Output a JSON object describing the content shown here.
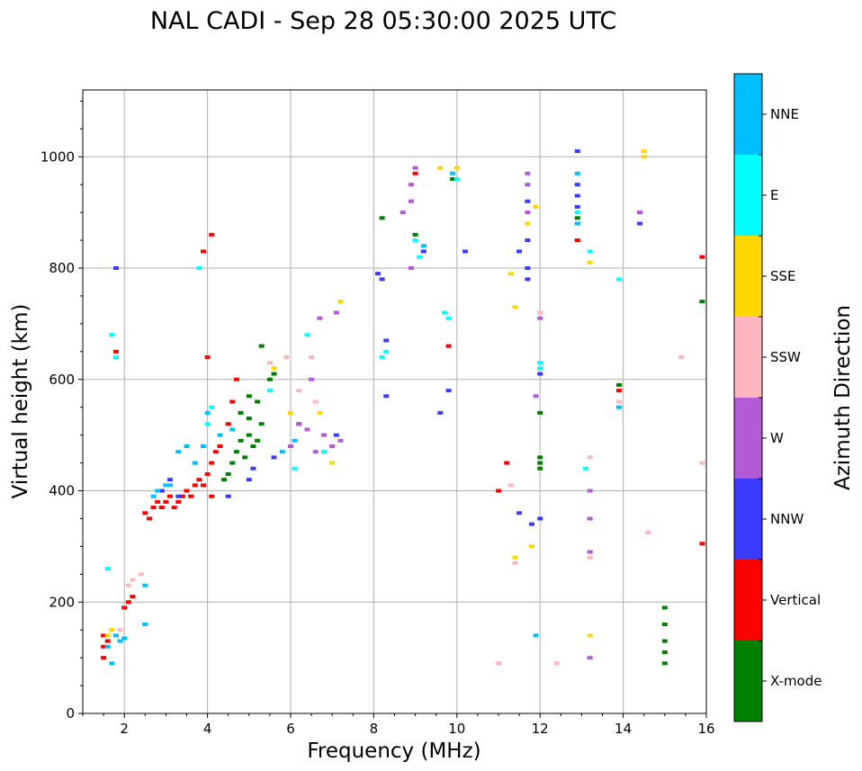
{
  "chart_data": {
    "type": "scatter",
    "title": "NAL CADI - Sep 28 05:30:00 2025 UTC",
    "xlabel": "Frequency (MHz)",
    "ylabel": "Virtual height (km)",
    "xlim": [
      1,
      16
    ],
    "ylim": [
      0,
      1120
    ],
    "x_ticks": [
      2,
      4,
      6,
      8,
      10,
      12,
      14,
      16
    ],
    "x_tick_labels": [
      "2",
      "4",
      "6",
      "8",
      "10",
      "12",
      "14",
      "16"
    ],
    "y_ticks": [
      0,
      200,
      400,
      600,
      800,
      1000
    ],
    "y_tick_labels": [
      "0",
      "200",
      "400",
      "600",
      "800",
      "1000"
    ],
    "grid": true,
    "colorbar": {
      "label": "Azimuth Direction",
      "categories": [
        {
          "name": "X-mode",
          "color": "#008000"
        },
        {
          "name": "Vertical",
          "color": "#ff0000"
        },
        {
          "name": "NNW",
          "color": "#3a3aff"
        },
        {
          "name": "W",
          "color": "#b35ad6"
        },
        {
          "name": "SSW",
          "color": "#ffb6c1"
        },
        {
          "name": "SSE",
          "color": "#ffd700"
        },
        {
          "name": "E",
          "color": "#00ffff"
        },
        {
          "name": "NNE",
          "color": "#00bfff"
        }
      ]
    },
    "series": [
      {
        "name": "X-mode",
        "points": [
          [
            4.6,
            450
          ],
          [
            4.7,
            470
          ],
          [
            4.8,
            490
          ],
          [
            5.0,
            500
          ],
          [
            5.1,
            480
          ],
          [
            5.2,
            490
          ],
          [
            5.3,
            520
          ],
          [
            5.0,
            530
          ],
          [
            4.9,
            460
          ],
          [
            4.5,
            430
          ],
          [
            4.4,
            420
          ],
          [
            5.2,
            560
          ],
          [
            5.5,
            600
          ],
          [
            5.6,
            610
          ],
          [
            5.3,
            660
          ],
          [
            5.0,
            570
          ],
          [
            4.8,
            540
          ],
          [
            8.2,
            890
          ],
          [
            9.0,
            860
          ],
          [
            9.9,
            960
          ],
          [
            12.0,
            460
          ],
          [
            12.0,
            450
          ],
          [
            12.0,
            440
          ],
          [
            12.0,
            540
          ],
          [
            12.9,
            890
          ],
          [
            12.9,
            880
          ],
          [
            13.9,
            590
          ],
          [
            15.0,
            190
          ],
          [
            15.0,
            160
          ],
          [
            15.0,
            130
          ],
          [
            15.0,
            110
          ],
          [
            15.0,
            90
          ],
          [
            15.9,
            740
          ]
        ]
      },
      {
        "name": "Vertical",
        "points": [
          [
            1.5,
            140
          ],
          [
            1.5,
            120
          ],
          [
            1.5,
            100
          ],
          [
            1.6,
            130
          ],
          [
            2.0,
            190
          ],
          [
            2.1,
            200
          ],
          [
            2.2,
            210
          ],
          [
            2.5,
            360
          ],
          [
            2.6,
            350
          ],
          [
            2.7,
            370
          ],
          [
            2.8,
            380
          ],
          [
            2.9,
            370
          ],
          [
            3.0,
            380
          ],
          [
            3.1,
            390
          ],
          [
            3.2,
            370
          ],
          [
            3.3,
            380
          ],
          [
            3.4,
            390
          ],
          [
            3.5,
            400
          ],
          [
            3.6,
            390
          ],
          [
            3.7,
            410
          ],
          [
            3.8,
            420
          ],
          [
            3.9,
            410
          ],
          [
            4.0,
            430
          ],
          [
            4.1,
            450
          ],
          [
            4.1,
            390
          ],
          [
            4.2,
            470
          ],
          [
            4.3,
            480
          ],
          [
            4.5,
            520
          ],
          [
            4.6,
            560
          ],
          [
            4.7,
            600
          ],
          [
            4.0,
            640
          ],
          [
            4.1,
            860
          ],
          [
            3.9,
            830
          ],
          [
            1.8,
            650
          ],
          [
            9.0,
            970
          ],
          [
            9.8,
            660
          ],
          [
            11.0,
            400
          ],
          [
            11.2,
            450
          ],
          [
            12.9,
            850
          ],
          [
            13.9,
            580
          ],
          [
            15.9,
            820
          ],
          [
            15.9,
            305
          ]
        ]
      },
      {
        "name": "NNW",
        "points": [
          [
            1.8,
            800
          ],
          [
            2.9,
            400
          ],
          [
            3.1,
            420
          ],
          [
            3.3,
            390
          ],
          [
            4.5,
            390
          ],
          [
            5.0,
            420
          ],
          [
            5.1,
            440
          ],
          [
            5.6,
            460
          ],
          [
            6.2,
            520
          ],
          [
            7.1,
            500
          ],
          [
            8.1,
            790
          ],
          [
            8.2,
            780
          ],
          [
            8.3,
            670
          ],
          [
            8.3,
            570
          ],
          [
            9.2,
            830
          ],
          [
            9.6,
            540
          ],
          [
            9.8,
            580
          ],
          [
            10.2,
            830
          ],
          [
            11.5,
            360
          ],
          [
            11.8,
            340
          ],
          [
            11.5,
            830
          ],
          [
            11.7,
            850
          ],
          [
            11.7,
            800
          ],
          [
            11.7,
            780
          ],
          [
            11.7,
            920
          ],
          [
            12.0,
            350
          ],
          [
            12.0,
            610
          ],
          [
            12.9,
            1010
          ],
          [
            12.9,
            950
          ],
          [
            12.9,
            930
          ],
          [
            12.9,
            910
          ],
          [
            14.4,
            900
          ],
          [
            14.4,
            880
          ]
        ]
      },
      {
        "name": "W",
        "points": [
          [
            6.0,
            480
          ],
          [
            6.2,
            520
          ],
          [
            6.4,
            510
          ],
          [
            6.6,
            470
          ],
          [
            6.8,
            500
          ],
          [
            7.0,
            480
          ],
          [
            7.2,
            490
          ],
          [
            6.7,
            710
          ],
          [
            7.1,
            720
          ],
          [
            6.5,
            600
          ],
          [
            8.7,
            900
          ],
          [
            8.9,
            950
          ],
          [
            8.9,
            920
          ],
          [
            9.0,
            980
          ],
          [
            8.9,
            800
          ],
          [
            11.7,
            970
          ],
          [
            11.7,
            950
          ],
          [
            11.7,
            900
          ],
          [
            11.9,
            570
          ],
          [
            12.0,
            710
          ],
          [
            13.2,
            400
          ],
          [
            13.2,
            350
          ],
          [
            13.2,
            290
          ],
          [
            13.2,
            100
          ],
          [
            14.4,
            900
          ]
        ]
      },
      {
        "name": "SSW",
        "points": [
          [
            1.9,
            150
          ],
          [
            2.1,
            230
          ],
          [
            2.2,
            240
          ],
          [
            2.4,
            250
          ],
          [
            5.5,
            630
          ],
          [
            5.9,
            640
          ],
          [
            6.2,
            580
          ],
          [
            6.5,
            640
          ],
          [
            6.6,
            560
          ],
          [
            11.0,
            90
          ],
          [
            11.3,
            410
          ],
          [
            11.4,
            270
          ],
          [
            12.0,
            720
          ],
          [
            12.4,
            90
          ],
          [
            13.2,
            460
          ],
          [
            13.2,
            280
          ],
          [
            13.9,
            560
          ],
          [
            14.6,
            325
          ],
          [
            15.4,
            640
          ],
          [
            15.9,
            450
          ]
        ]
      },
      {
        "name": "SSE",
        "points": [
          [
            1.6,
            140
          ],
          [
            1.7,
            150
          ],
          [
            5.6,
            620
          ],
          [
            6.0,
            540
          ],
          [
            6.7,
            540
          ],
          [
            7.0,
            450
          ],
          [
            7.2,
            740
          ],
          [
            9.6,
            980
          ],
          [
            10.0,
            980
          ],
          [
            11.3,
            790
          ],
          [
            11.4,
            280
          ],
          [
            11.4,
            730
          ],
          [
            11.9,
            910
          ],
          [
            11.8,
            300
          ],
          [
            11.7,
            880
          ],
          [
            13.2,
            810
          ],
          [
            13.2,
            140
          ],
          [
            14.5,
            1010
          ],
          [
            14.5,
            1000
          ]
        ]
      },
      {
        "name": "E",
        "points": [
          [
            1.7,
            680
          ],
          [
            1.6,
            260
          ],
          [
            1.8,
            640
          ],
          [
            3.8,
            800
          ],
          [
            4.1,
            550
          ],
          [
            4.0,
            520
          ],
          [
            5.5,
            580
          ],
          [
            6.1,
            440
          ],
          [
            6.4,
            680
          ],
          [
            6.8,
            470
          ],
          [
            8.2,
            640
          ],
          [
            8.3,
            650
          ],
          [
            9.0,
            850
          ],
          [
            9.1,
            820
          ],
          [
            9.7,
            720
          ],
          [
            9.8,
            710
          ],
          [
            10.0,
            960
          ],
          [
            12.0,
            630
          ],
          [
            12.0,
            620
          ],
          [
            12.9,
            900
          ],
          [
            13.1,
            440
          ],
          [
            13.2,
            830
          ],
          [
            13.9,
            780
          ]
        ]
      },
      {
        "name": "NNE",
        "points": [
          [
            1.6,
            120
          ],
          [
            1.7,
            90
          ],
          [
            1.8,
            140
          ],
          [
            1.9,
            130
          ],
          [
            2.0,
            135
          ],
          [
            2.5,
            160
          ],
          [
            2.5,
            230
          ],
          [
            2.7,
            390
          ],
          [
            2.8,
            400
          ],
          [
            3.0,
            410
          ],
          [
            3.1,
            410
          ],
          [
            3.3,
            470
          ],
          [
            3.5,
            480
          ],
          [
            3.7,
            450
          ],
          [
            3.9,
            480
          ],
          [
            4.0,
            540
          ],
          [
            4.3,
            500
          ],
          [
            4.6,
            510
          ],
          [
            5.8,
            470
          ],
          [
            6.1,
            490
          ],
          [
            9.2,
            840
          ],
          [
            9.9,
            970
          ],
          [
            11.9,
            140
          ],
          [
            12.9,
            970
          ],
          [
            12.9,
            880
          ],
          [
            13.9,
            550
          ]
        ]
      }
    ]
  }
}
